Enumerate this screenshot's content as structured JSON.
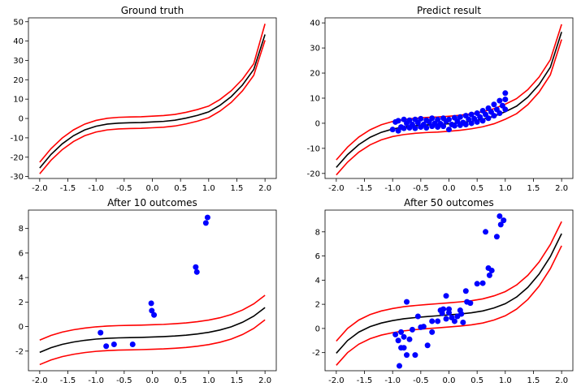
{
  "chart_data": [
    {
      "type": "line",
      "title": "Ground truth",
      "xlim": [
        -2.2,
        2.2
      ],
      "ylim": [
        -31,
        52
      ],
      "xticks": [
        -2.0,
        -1.5,
        -1.0,
        -0.5,
        0.0,
        0.5,
        1.0,
        1.5,
        2.0
      ],
      "yticks": [
        -30,
        -20,
        -10,
        0,
        10,
        20,
        30,
        40,
        50
      ],
      "x": [
        -2.0,
        -1.8,
        -1.6,
        -1.4,
        -1.2,
        -1.0,
        -0.8,
        -0.6,
        -0.4,
        -0.2,
        0.0,
        0.2,
        0.4,
        0.6,
        0.8,
        1.0,
        1.2,
        1.4,
        1.6,
        1.8,
        2.0
      ],
      "series": [
        {
          "color": "#000000",
          "values": [
            -25.6,
            -18.6,
            -13.1,
            -8.9,
            -5.9,
            -4.0,
            -2.9,
            -2.4,
            -2.2,
            -2.1,
            -1.8,
            -1.5,
            -0.9,
            0.2,
            1.6,
            3.4,
            6.8,
            11.3,
            17.3,
            25.3,
            43.4
          ]
        },
        {
          "color": "#ff0000",
          "values": [
            -22.6,
            -15.6,
            -10.1,
            -5.9,
            -2.9,
            -1.0,
            0.1,
            0.6,
            0.8,
            0.9,
            1.2,
            1.5,
            2.1,
            3.2,
            4.6,
            6.4,
            9.8,
            14.3,
            20.3,
            28.3,
            48.9
          ]
        },
        {
          "color": "#ff0000",
          "values": [
            -28.6,
            -21.6,
            -16.1,
            -11.9,
            -8.9,
            -7.0,
            -5.9,
            -5.4,
            -5.2,
            -5.1,
            -4.8,
            -4.5,
            -3.9,
            -2.8,
            -1.4,
            0.4,
            3.8,
            8.3,
            14.3,
            22.3,
            40.4
          ]
        }
      ],
      "scatter": []
    },
    {
      "type": "line",
      "title": "Predict result",
      "xlim": [
        -2.2,
        2.2
      ],
      "ylim": [
        -22,
        42
      ],
      "xticks": [
        -2.0,
        -1.5,
        -1.0,
        -0.5,
        0.0,
        0.5,
        1.0,
        1.5,
        2.0
      ],
      "yticks": [
        -20,
        -10,
        0,
        10,
        20,
        30,
        40
      ],
      "x": [
        -2.0,
        -1.8,
        -1.6,
        -1.4,
        -1.2,
        -1.0,
        -0.8,
        -0.6,
        -0.4,
        -0.2,
        0.0,
        0.2,
        0.4,
        0.6,
        0.8,
        1.0,
        1.2,
        1.4,
        1.6,
        1.8,
        2.0
      ],
      "series": [
        {
          "color": "#000000",
          "values": [
            -17.6,
            -12.5,
            -8.5,
            -5.6,
            -3.6,
            -2.3,
            -1.5,
            -1.0,
            -0.7,
            -0.5,
            -0.2,
            0.2,
            0.8,
            1.6,
            2.8,
            4.6,
            6.8,
            10.4,
            15.4,
            22.3,
            36.4
          ]
        },
        {
          "color": "#ff0000",
          "values": [
            -14.6,
            -9.5,
            -5.5,
            -2.6,
            -0.6,
            0.7,
            1.5,
            2.0,
            2.3,
            2.5,
            2.8,
            3.2,
            3.8,
            4.6,
            5.8,
            7.6,
            9.8,
            13.4,
            18.4,
            25.3,
            39.4
          ]
        },
        {
          "color": "#ff0000",
          "values": [
            -20.6,
            -15.5,
            -11.5,
            -8.6,
            -6.6,
            -5.3,
            -4.5,
            -4.0,
            -3.7,
            -3.5,
            -3.2,
            -2.8,
            -2.2,
            -1.4,
            -0.2,
            1.6,
            3.8,
            7.4,
            12.4,
            19.3,
            33.4
          ]
        }
      ],
      "scatter": [
        {
          "x": -1.0,
          "y": -2.5
        },
        {
          "x": -0.95,
          "y": 0.5
        },
        {
          "x": -0.9,
          "y": -3.0
        },
        {
          "x": -0.9,
          "y": 1.0
        },
        {
          "x": -0.85,
          "y": -1.5
        },
        {
          "x": -0.8,
          "y": 1.5
        },
        {
          "x": -0.8,
          "y": -2.0
        },
        {
          "x": -0.75,
          "y": 0.0
        },
        {
          "x": -0.7,
          "y": -1.8
        },
        {
          "x": -0.7,
          "y": 1.2
        },
        {
          "x": -0.65,
          "y": -0.5
        },
        {
          "x": -0.6,
          "y": 1.5
        },
        {
          "x": -0.6,
          "y": -2.0
        },
        {
          "x": -0.55,
          "y": 0.2
        },
        {
          "x": -0.5,
          "y": -1.5
        },
        {
          "x": -0.5,
          "y": 1.8
        },
        {
          "x": -0.45,
          "y": -0.5
        },
        {
          "x": -0.4,
          "y": 1.2
        },
        {
          "x": -0.4,
          "y": -1.8
        },
        {
          "x": -0.35,
          "y": 0.5
        },
        {
          "x": -0.3,
          "y": -1.2
        },
        {
          "x": -0.3,
          "y": 2.0
        },
        {
          "x": -0.25,
          "y": 0.0
        },
        {
          "x": -0.2,
          "y": -1.5
        },
        {
          "x": -0.2,
          "y": 1.5
        },
        {
          "x": -0.15,
          "y": -0.2
        },
        {
          "x": -0.1,
          "y": 2.0
        },
        {
          "x": -0.1,
          "y": -1.2
        },
        {
          "x": -0.05,
          "y": 0.8
        },
        {
          "x": 0.0,
          "y": -2.5
        },
        {
          "x": 0.0,
          "y": 1.5
        },
        {
          "x": 0.05,
          "y": -0.5
        },
        {
          "x": 0.1,
          "y": 2.2
        },
        {
          "x": 0.1,
          "y": -1.0
        },
        {
          "x": 0.15,
          "y": 0.8
        },
        {
          "x": 0.2,
          "y": -0.8
        },
        {
          "x": 0.2,
          "y": 2.5
        },
        {
          "x": 0.25,
          "y": 0.3
        },
        {
          "x": 0.3,
          "y": 3.0
        },
        {
          "x": 0.3,
          "y": -0.5
        },
        {
          "x": 0.35,
          "y": 1.5
        },
        {
          "x": 0.4,
          "y": 0.0
        },
        {
          "x": 0.4,
          "y": 3.5
        },
        {
          "x": 0.45,
          "y": 1.8
        },
        {
          "x": 0.5,
          "y": 4.0
        },
        {
          "x": 0.5,
          "y": 0.5
        },
        {
          "x": 0.55,
          "y": 2.5
        },
        {
          "x": 0.6,
          "y": 5.0
        },
        {
          "x": 0.6,
          "y": 1.0
        },
        {
          "x": 0.65,
          "y": 3.5
        },
        {
          "x": 0.7,
          "y": 6.0
        },
        {
          "x": 0.7,
          "y": 2.0
        },
        {
          "x": 0.75,
          "y": 4.5
        },
        {
          "x": 0.8,
          "y": 7.5
        },
        {
          "x": 0.8,
          "y": 3.0
        },
        {
          "x": 0.85,
          "y": 5.5
        },
        {
          "x": 0.9,
          "y": 9.0
        },
        {
          "x": 0.9,
          "y": 4.0
        },
        {
          "x": 0.95,
          "y": 7.0
        },
        {
          "x": 1.0,
          "y": 12.0
        },
        {
          "x": 1.0,
          "y": 5.5
        },
        {
          "x": 1.0,
          "y": 9.5
        }
      ]
    },
    {
      "type": "line",
      "title": "After 10 outcomes",
      "xlim": [
        -2.2,
        2.2
      ],
      "ylim": [
        -3.6,
        9.5
      ],
      "xticks": [
        -2.0,
        -1.5,
        -1.0,
        -0.5,
        0.0,
        0.5,
        1.0,
        1.5,
        2.0
      ],
      "yticks": [
        -2,
        0,
        2,
        4,
        6,
        8
      ],
      "x": [
        -2.0,
        -1.8,
        -1.6,
        -1.4,
        -1.2,
        -1.0,
        -0.8,
        -0.6,
        -0.4,
        -0.2,
        0.0,
        0.2,
        0.4,
        0.6,
        0.8,
        1.0,
        1.2,
        1.4,
        1.6,
        1.8,
        2.0
      ],
      "series": [
        {
          "color": "#000000",
          "values": [
            -2.1,
            -1.72,
            -1.45,
            -1.26,
            -1.12,
            -1.02,
            -0.96,
            -0.92,
            -0.9,
            -0.88,
            -0.85,
            -0.82,
            -0.77,
            -0.7,
            -0.6,
            -0.47,
            -0.28,
            -0.02,
            0.35,
            0.85,
            1.55
          ]
        },
        {
          "color": "#ff0000",
          "values": [
            -1.1,
            -0.72,
            -0.45,
            -0.26,
            -0.12,
            -0.02,
            0.04,
            0.08,
            0.1,
            0.12,
            0.15,
            0.18,
            0.23,
            0.3,
            0.4,
            0.53,
            0.72,
            0.98,
            1.35,
            1.85,
            2.55
          ]
        },
        {
          "color": "#ff0000",
          "values": [
            -3.1,
            -2.72,
            -2.45,
            -2.26,
            -2.12,
            -2.02,
            -1.96,
            -1.92,
            -1.9,
            -1.88,
            -1.85,
            -1.82,
            -1.77,
            -1.7,
            -1.6,
            -1.47,
            -1.28,
            -1.02,
            -0.65,
            -0.15,
            0.55
          ]
        }
      ],
      "scatter": [
        {
          "x": -0.92,
          "y": -0.5
        },
        {
          "x": -0.82,
          "y": -1.6
        },
        {
          "x": -0.68,
          "y": -1.45
        },
        {
          "x": -0.35,
          "y": -1.45
        },
        {
          "x": -0.02,
          "y": 1.9
        },
        {
          "x": -0.01,
          "y": 1.3
        },
        {
          "x": 0.03,
          "y": 0.95
        },
        {
          "x": 0.77,
          "y": 4.85
        },
        {
          "x": 0.79,
          "y": 4.45
        },
        {
          "x": 0.95,
          "y": 8.45
        },
        {
          "x": 0.98,
          "y": 8.9
        }
      ]
    },
    {
      "type": "line",
      "title": "After 50 outcomes",
      "xlim": [
        -2.2,
        2.2
      ],
      "ylim": [
        -3.5,
        9.8
      ],
      "xticks": [
        -2.0,
        -1.5,
        -1.0,
        -0.5,
        0.0,
        0.5,
        1.0,
        1.5,
        2.0
      ],
      "yticks": [
        -2,
        0,
        2,
        4,
        6,
        8
      ],
      "x": [
        -2.0,
        -1.8,
        -1.6,
        -1.4,
        -1.2,
        -1.0,
        -0.8,
        -0.6,
        -0.4,
        -0.2,
        0.0,
        0.2,
        0.4,
        0.6,
        0.8,
        1.0,
        1.2,
        1.4,
        1.6,
        1.8,
        2.0
      ],
      "series": [
        {
          "color": "#000000",
          "values": [
            -2.05,
            -1.0,
            -0.3,
            0.15,
            0.45,
            0.65,
            0.8,
            0.9,
            0.98,
            1.05,
            1.12,
            1.2,
            1.3,
            1.45,
            1.7,
            2.05,
            2.6,
            3.4,
            4.5,
            5.95,
            7.85
          ]
        },
        {
          "color": "#ff0000",
          "values": [
            -1.05,
            0.0,
            0.7,
            1.15,
            1.45,
            1.65,
            1.8,
            1.9,
            1.98,
            2.05,
            2.12,
            2.2,
            2.3,
            2.45,
            2.7,
            3.05,
            3.6,
            4.4,
            5.5,
            6.95,
            8.85
          ]
        },
        {
          "color": "#ff0000",
          "values": [
            -3.05,
            -2.0,
            -1.3,
            -0.85,
            -0.55,
            -0.35,
            -0.2,
            -0.1,
            -0.02,
            0.05,
            0.12,
            0.2,
            0.3,
            0.45,
            0.7,
            1.05,
            1.6,
            2.4,
            3.5,
            4.95,
            6.85
          ]
        }
      ],
      "scatter": [
        {
          "x": -0.95,
          "y": -0.5
        },
        {
          "x": -0.9,
          "y": -1.0
        },
        {
          "x": -0.88,
          "y": -3.1
        },
        {
          "x": -0.85,
          "y": -0.3
        },
        {
          "x": -0.85,
          "y": -1.6
        },
        {
          "x": -0.8,
          "y": -0.7
        },
        {
          "x": -0.8,
          "y": -1.6
        },
        {
          "x": -0.75,
          "y": 2.2
        },
        {
          "x": -0.75,
          "y": -2.2
        },
        {
          "x": -0.7,
          "y": -0.9
        },
        {
          "x": -0.65,
          "y": -0.1
        },
        {
          "x": -0.6,
          "y": -2.2
        },
        {
          "x": -0.55,
          "y": 1.0
        },
        {
          "x": -0.5,
          "y": 0.1
        },
        {
          "x": -0.45,
          "y": 0.15
        },
        {
          "x": -0.38,
          "y": -1.4
        },
        {
          "x": -0.3,
          "y": 0.6
        },
        {
          "x": -0.3,
          "y": -0.3
        },
        {
          "x": -0.2,
          "y": 0.6
        },
        {
          "x": -0.15,
          "y": 1.5
        },
        {
          "x": -0.12,
          "y": 1.25
        },
        {
          "x": -0.1,
          "y": 1.6
        },
        {
          "x": -0.05,
          "y": 2.7
        },
        {
          "x": -0.05,
          "y": 0.8
        },
        {
          "x": 0.0,
          "y": 1.6
        },
        {
          "x": 0.0,
          "y": 1.3
        },
        {
          "x": 0.05,
          "y": 0.9
        },
        {
          "x": 0.1,
          "y": 0.6
        },
        {
          "x": 0.15,
          "y": 1.0
        },
        {
          "x": 0.2,
          "y": 1.5
        },
        {
          "x": 0.22,
          "y": 1.2
        },
        {
          "x": 0.25,
          "y": 0.5
        },
        {
          "x": 0.3,
          "y": 3.1
        },
        {
          "x": 0.32,
          "y": 2.2
        },
        {
          "x": 0.38,
          "y": 2.1
        },
        {
          "x": 0.5,
          "y": 3.7
        },
        {
          "x": 0.6,
          "y": 3.75
        },
        {
          "x": 0.65,
          "y": 8.0
        },
        {
          "x": 0.7,
          "y": 5.0
        },
        {
          "x": 0.72,
          "y": 4.4
        },
        {
          "x": 0.76,
          "y": 4.8
        },
        {
          "x": 0.85,
          "y": 7.6
        },
        {
          "x": 0.9,
          "y": 9.3
        },
        {
          "x": 0.92,
          "y": 8.6
        },
        {
          "x": 0.97,
          "y": 8.95
        }
      ]
    }
  ]
}
